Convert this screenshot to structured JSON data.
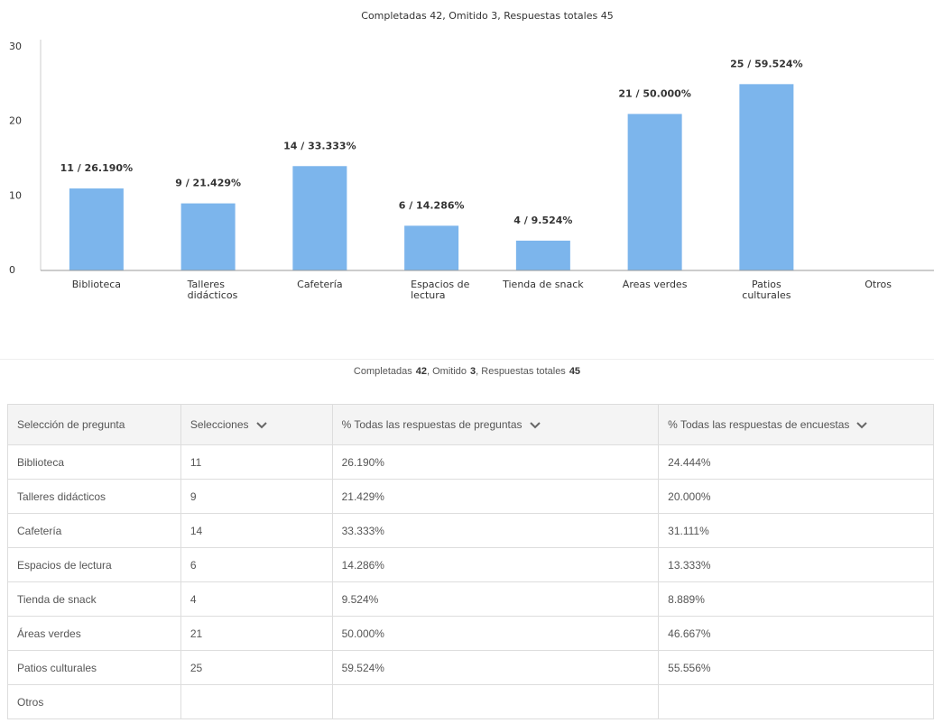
{
  "chart_data": {
    "type": "bar",
    "title": "Completadas 42, Omitido 3, Respuestas totales 45",
    "categories": [
      "Biblioteca",
      "Talleres didácticos",
      "Cafetería",
      "Espacios de lectura",
      "Tienda de snack",
      "Áreas verdes",
      "Patios culturales",
      "Otros"
    ],
    "values": [
      11,
      9,
      14,
      6,
      4,
      21,
      25,
      null
    ],
    "value_labels": [
      "11 / 26.190%",
      "9 / 21.429%",
      "14 / 33.333%",
      "6 / 14.286%",
      "4 / 9.524%",
      "21 / 50.000%",
      "25 / 59.524%",
      null
    ],
    "color": "#7cb5ec",
    "ylim": [
      0,
      30
    ],
    "yticks": [
      0,
      10,
      20,
      30
    ],
    "grid": false
  },
  "table_summary": [
    "Completadas",
    "42",
    ", Omitido",
    "3",
    ", Respuestas totales",
    "45"
  ],
  "table": {
    "header": [
      "Selección de pregunta",
      "Selecciones",
      "% Todas las respuestas de preguntas",
      "% Todas las respuestas de encuestas"
    ],
    "rows": [
      [
        "Biblioteca",
        "11",
        "26.190%",
        "24.444%"
      ],
      [
        "Talleres didácticos",
        "9",
        "21.429%",
        "20.000%"
      ],
      [
        "Cafetería",
        "14",
        "33.333%",
        "31.111%"
      ],
      [
        "Espacios de lectura",
        "6",
        "14.286%",
        "13.333%"
      ],
      [
        "Tienda de snack",
        "4",
        "9.524%",
        "8.889%"
      ],
      [
        "Áreas verdes",
        "21",
        "50.000%",
        "46.667%"
      ],
      [
        "Patios culturales",
        "25",
        "59.524%",
        "55.556%"
      ],
      [
        "Otros",
        null,
        null,
        null
      ]
    ]
  }
}
